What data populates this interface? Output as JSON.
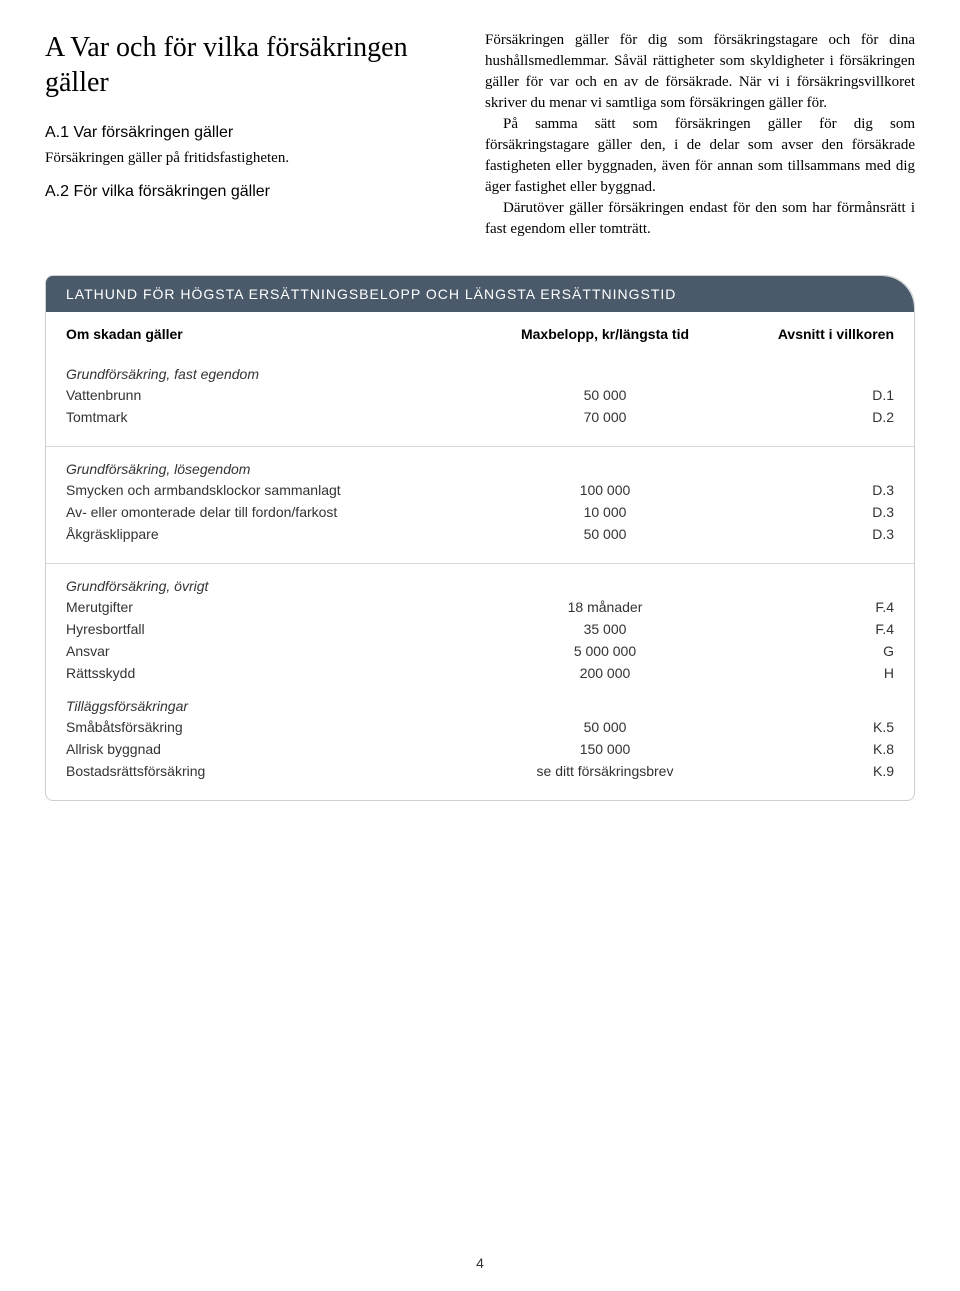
{
  "main_heading": "A  Var och för vilka försäkringen gäller",
  "left": {
    "a1_title": "A.1  Var försäkringen gäller",
    "a1_body": "Försäkringen gäller på fritidsfastigheten.",
    "a2_title": "A.2  För vilka försäkringen gäller"
  },
  "right": {
    "p1": "Försäkringen gäller för dig som försäkringstagare och för dina hushållsmedlemmar. Såväl rättigheter som skyldigheter i försäkringen gäller för var och en av de försäkrade. När vi i försäkringsvillkoret skriver du menar vi samtliga som försäkringen gäller för.",
    "p2": "På samma sätt som försäkringen gäller för dig som försäkringstagare gäller den, i de delar som avser den försäkrade fastigheten eller byggnaden, även för annan som tillsammans med dig äger fastighet eller byggnad.",
    "p3": "Därutöver gäller försäkringen endast för den som har förmånsrätt i fast egendom eller tomträtt."
  },
  "table": {
    "header_bar": "LATHUND FÖR HÖGSTA ERSÄTTNINGSBELOPP OCH LÄNGSTA ERSÄTTNINGSTID",
    "columns": {
      "a": "Om skadan gäller",
      "b": "Maxbelopp, kr/längsta tid",
      "c": "Avsnitt i villkoren"
    },
    "groups": [
      {
        "title": "Grundförsäkring, fast egendom",
        "rows": [
          {
            "label": "Vattenbrunn",
            "value": "50 000",
            "ref": "D.1"
          },
          {
            "label": "Tomtmark",
            "value": "70 000",
            "ref": "D.2"
          }
        ],
        "divider_after": true
      },
      {
        "title": "Grundförsäkring, lösegendom",
        "rows": [
          {
            "label": "Smycken och armbandsklockor sammanlagt",
            "value": "100 000",
            "ref": "D.3"
          },
          {
            "label": "Av- eller omonterade delar till fordon/farkost",
            "value": "10 000",
            "ref": "D.3"
          },
          {
            "label": "Åkgräsklippare",
            "value": "50 000",
            "ref": "D.3"
          }
        ],
        "divider_after": true
      },
      {
        "title": "Grundförsäkring, övrigt",
        "rows": [
          {
            "label": "Merutgifter",
            "value": "18 månader",
            "ref": "F.4"
          },
          {
            "label": "Hyresbortfall",
            "value": "35 000",
            "ref": "F.4"
          },
          {
            "label": "Ansvar",
            "value": "5 000 000",
            "ref": "G"
          },
          {
            "label": "Rättsskydd",
            "value": "200 000",
            "ref": "H"
          }
        ],
        "divider_after": false
      },
      {
        "title": "Tilläggsförsäkringar",
        "rows": [
          {
            "label": "Småbåtsförsäkring",
            "value": "50 000",
            "ref": "K.5"
          },
          {
            "label": "Allrisk byggnad",
            "value": "150 000",
            "ref": "K.8"
          },
          {
            "label": "Bostadsrättsförsäkring",
            "value": "se ditt försäkringsbrev",
            "ref": "K.9"
          }
        ],
        "divider_after": false
      }
    ]
  },
  "page_number": "4",
  "colors": {
    "header_bar_bg": "#4a5a6a",
    "border": "#cfcfcf",
    "divider": "#d9d9d9",
    "text": "#333333"
  }
}
